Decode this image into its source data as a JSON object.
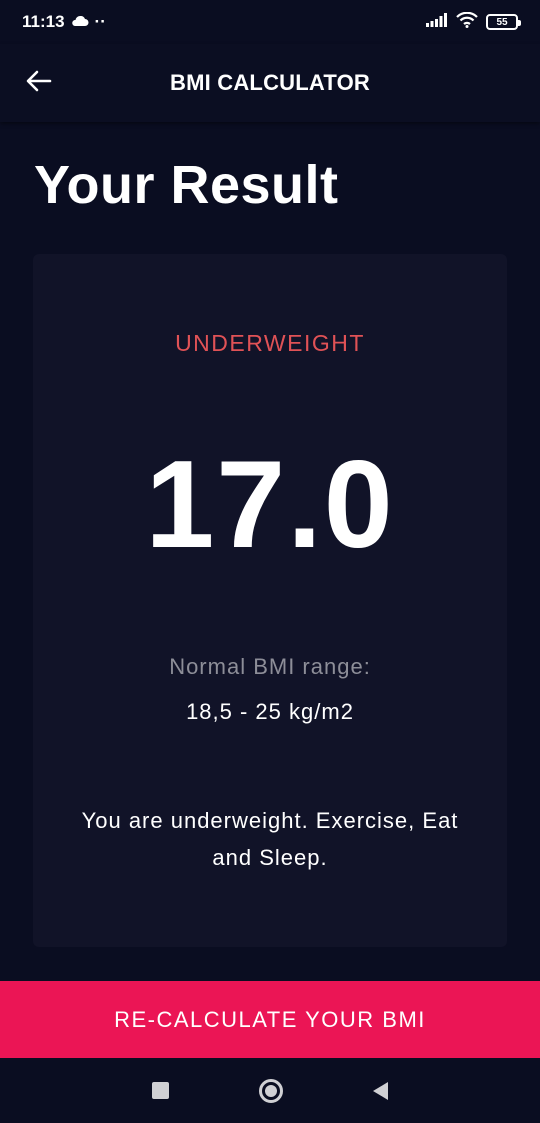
{
  "status_bar": {
    "time": "11:13",
    "dots": "··",
    "battery": "55"
  },
  "app_bar": {
    "title": "BMI CALCULATOR"
  },
  "page": {
    "title": "Your Result"
  },
  "result": {
    "label": "UNDERWEIGHT",
    "label_color": "#e05256",
    "bmi_value": "17.0",
    "range_label": "Normal BMI range:",
    "range_value": "18,5 - 25 kg/m2",
    "interpretation": "You are underweight. Exercise, Eat and Sleep."
  },
  "actions": {
    "recalculate_label": "RE-CALCULATE YOUR BMI",
    "accent": "#eb1555"
  },
  "icons": {
    "back": "arrow-left-icon",
    "cloud": "cloud-icon",
    "signal": "signal-icon",
    "wifi": "wifi-icon",
    "nav_recents": "square-icon",
    "nav_home": "circle-icon",
    "nav_back": "triangle-back-icon"
  }
}
